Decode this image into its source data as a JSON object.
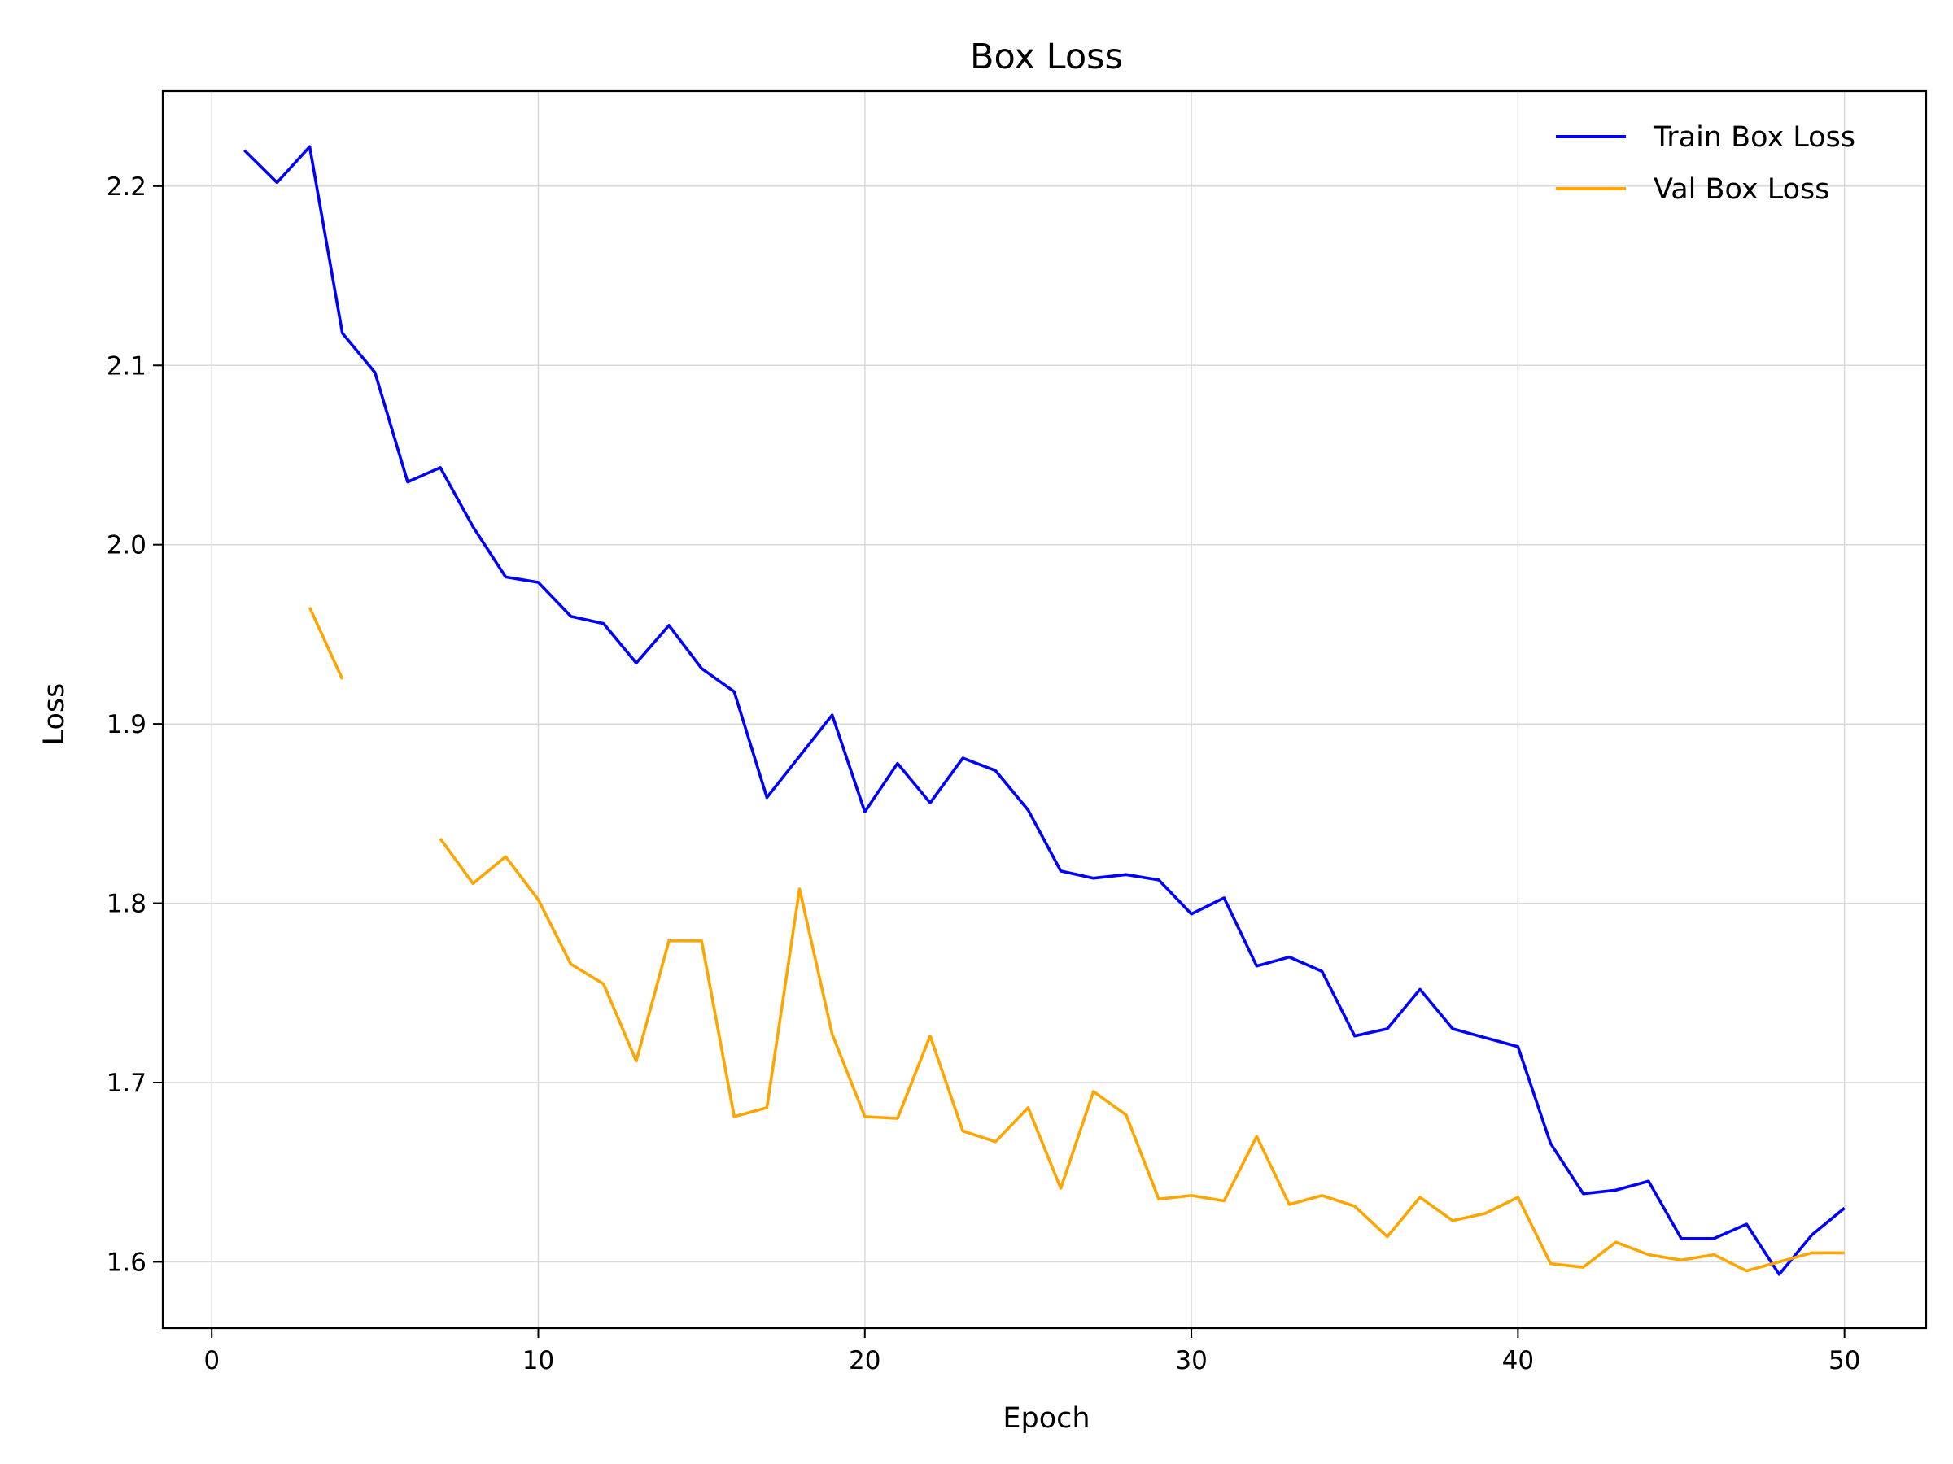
{
  "chart_data": {
    "type": "line",
    "title": "Box Loss",
    "xlabel": "Epoch",
    "ylabel": "Loss",
    "xlim": [
      -1.5,
      52.5
    ],
    "ylim": [
      1.563,
      2.253
    ],
    "xticks": [
      "0",
      "10",
      "20",
      "30",
      "40",
      "50"
    ],
    "yticks": [
      "1.6",
      "1.7",
      "1.8",
      "1.9",
      "2.0",
      "2.1",
      "2.2"
    ],
    "grid": true,
    "legend_position": "top-right",
    "series": [
      {
        "name": "Train Box Loss",
        "color": "#0000ff",
        "x": [
          1,
          2,
          3,
          4,
          5,
          6,
          7,
          8,
          9,
          10,
          11,
          12,
          13,
          14,
          15,
          16,
          17,
          18,
          19,
          20,
          21,
          22,
          23,
          24,
          25,
          26,
          27,
          28,
          29,
          30,
          31,
          32,
          33,
          34,
          35,
          36,
          37,
          38,
          39,
          40,
          41,
          42,
          43,
          44,
          45,
          46,
          47,
          48,
          49,
          50
        ],
        "values": [
          2.22,
          2.202,
          2.222,
          2.118,
          2.096,
          2.035,
          2.043,
          2.01,
          1.982,
          1.979,
          1.96,
          1.956,
          1.934,
          1.955,
          1.931,
          1.918,
          1.859,
          1.882,
          1.905,
          1.851,
          1.878,
          1.856,
          1.881,
          1.874,
          1.852,
          1.818,
          1.814,
          1.816,
          1.813,
          1.794,
          1.803,
          1.765,
          1.77,
          1.762,
          1.726,
          1.73,
          1.752,
          1.73,
          1.725,
          1.72,
          1.666,
          1.638,
          1.64,
          1.645,
          1.613,
          1.613,
          1.621,
          1.593,
          1.615,
          1.63
        ]
      },
      {
        "name": "Val Box Loss",
        "color": "#ffa500",
        "x": [
          1,
          2,
          3,
          4,
          5,
          6,
          7,
          8,
          9,
          10,
          11,
          12,
          13,
          14,
          15,
          16,
          17,
          18,
          19,
          20,
          21,
          22,
          23,
          24,
          25,
          26,
          27,
          28,
          29,
          30,
          31,
          32,
          33,
          34,
          35,
          36,
          37,
          38,
          39,
          40,
          41,
          42,
          43,
          44,
          45,
          46,
          47,
          48,
          49,
          50
        ],
        "values": [
          null,
          null,
          1.965,
          1.925,
          null,
          null,
          1.836,
          1.811,
          1.826,
          1.802,
          1.766,
          1.755,
          1.712,
          1.779,
          1.779,
          1.681,
          1.686,
          1.808,
          1.727,
          1.681,
          1.68,
          1.726,
          1.673,
          1.667,
          1.686,
          1.641,
          1.695,
          1.682,
          1.635,
          1.637,
          1.634,
          1.67,
          1.632,
          1.637,
          1.631,
          1.614,
          1.636,
          1.623,
          1.627,
          1.636,
          1.599,
          1.597,
          1.611,
          1.604,
          1.601,
          1.604,
          1.595,
          1.6,
          1.605,
          1.605
        ]
      }
    ]
  }
}
